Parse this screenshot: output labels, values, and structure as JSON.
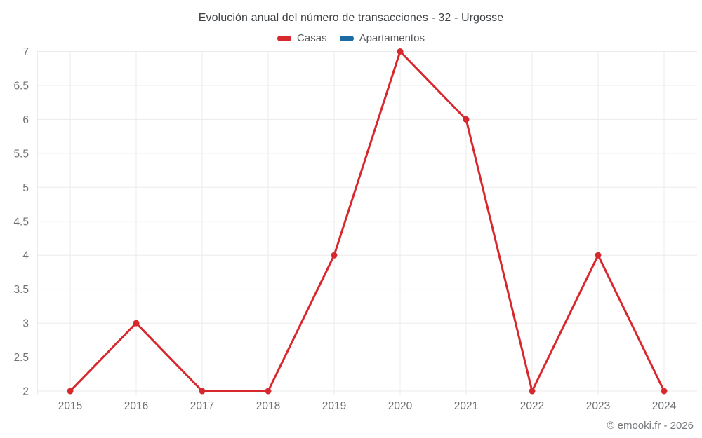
{
  "chart_data": {
    "type": "line",
    "title": "Evolución anual del número de transacciones - 32 - Urgosse",
    "categories": [
      "2015",
      "2016",
      "2017",
      "2018",
      "2019",
      "2020",
      "2021",
      "2022",
      "2023",
      "2024"
    ],
    "series": [
      {
        "name": "Casas",
        "color": "#d7282e",
        "values": [
          2,
          3,
          2,
          2,
          4,
          7,
          6,
          2,
          4,
          2
        ]
      },
      {
        "name": "Apartamentos",
        "color": "#1a6ca3",
        "values": []
      }
    ],
    "xlabel": "",
    "ylabel": "",
    "ylim": [
      2,
      7
    ],
    "ytick_step": 0.5,
    "grid": true,
    "legend_position": "top",
    "footer": "© emooki.fr - 2026"
  },
  "colors": {
    "grid_line": "#ebebeb",
    "axis_line": "#d9d9d9",
    "tick_label": "#6f7275",
    "title_text": "#3f4245",
    "legend_text": "#54575b",
    "footer_text": "#76797c",
    "background": "#ffffff"
  }
}
